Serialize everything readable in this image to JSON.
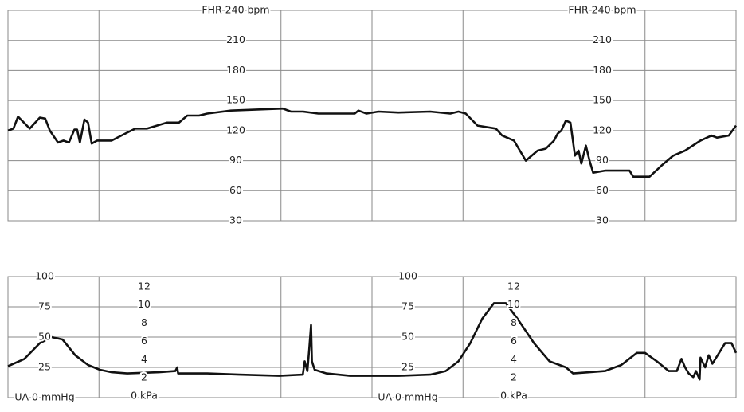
{
  "chart_data": [
    {
      "type": "line",
      "xlim": [
        0,
        80
      ],
      "ylim": [
        30,
        240
      ],
      "yticks": [
        30,
        60,
        90,
        120,
        150,
        180,
        210,
        {
          "value": 240,
          "label": "FHR 240 bpm"
        }
      ],
      "color": "#111111",
      "x": [
        0,
        0.6,
        1.1,
        2.4,
        3.5,
        4.1,
        4.6,
        5.5,
        6.1,
        6.7,
        7.3,
        7.6,
        7.9,
        8.4,
        8.8,
        9.2,
        9.8,
        11.4,
        13.1,
        14.0,
        15.3,
        17.5,
        18.8,
        19.7,
        21.0,
        21.9,
        24.5,
        30.2,
        31.1,
        32.4,
        34.1,
        38.1,
        38.5,
        39.4,
        40.7,
        42.9,
        46.4,
        48.6,
        49.5,
        50.3,
        51.6,
        53.6,
        54.3,
        55.6,
        56.9,
        58.2,
        59.1,
        60.0,
        60.4,
        60.8,
        61.3,
        61.8,
        62.3,
        62.7,
        63.0,
        63.5,
        63.9,
        64.3,
        65.6,
        68.3,
        68.7,
        70.5,
        71.8,
        73.1,
        74.4,
        76.1,
        77.3,
        77.9,
        79.2,
        80
      ],
      "values": [
        120,
        122,
        134,
        122,
        133,
        132,
        120,
        108,
        110,
        108,
        121,
        121,
        108,
        131,
        128,
        107,
        110,
        110,
        118,
        122,
        122,
        128,
        128,
        135,
        135,
        137,
        140,
        142,
        139,
        139,
        137,
        137,
        140,
        137,
        139,
        138,
        139,
        137,
        139,
        137,
        125,
        122,
        115,
        110,
        90,
        100,
        102,
        110,
        117,
        120,
        130,
        128,
        95,
        100,
        87,
        105,
        90,
        78,
        80,
        80,
        74,
        74,
        85,
        95,
        100,
        110,
        115,
        113,
        115,
        125
      ]
    },
    {
      "type": "line",
      "xlim": [
        0,
        80
      ],
      "ylim": [
        0,
        100
      ],
      "yticks": [
        {
          "value": 0,
          "label": "UA  0  mmHg"
        },
        25,
        50,
        75,
        100
      ],
      "y2lim": [
        0,
        13.3
      ],
      "y2ticks": [
        {
          "value": 0,
          "label": "0 kPa"
        },
        2,
        4,
        6,
        8,
        10,
        12
      ],
      "color": "#111111",
      "x": [
        0,
        1.8,
        3.5,
        4.8,
        6.0,
        7.4,
        8.8,
        10.1,
        11.4,
        13.1,
        16.6,
        18.4,
        18.6,
        18.7,
        21.9,
        25.4,
        29.8,
        32.4,
        32.6,
        32.9,
        33.1,
        33.3,
        33.4,
        33.7,
        35.0,
        37.6,
        42.9,
        46.4,
        48.1,
        49.5,
        50.8,
        52.1,
        53.4,
        54.7,
        56.0,
        57.8,
        59.5,
        61.3,
        62.1,
        63.9,
        65.6,
        67.4,
        69.1,
        70.0,
        71.3,
        72.6,
        73.5,
        74.0,
        74.4,
        74.8,
        75.3,
        75.6,
        76.0,
        76.1,
        76.6,
        77.0,
        77.4,
        77.9,
        78.8,
        79.5,
        80
      ],
      "values": [
        26,
        32,
        45,
        50,
        48,
        35,
        27,
        23,
        21,
        20,
        21,
        22,
        25,
        20,
        20,
        19,
        18,
        19,
        30,
        22,
        40,
        60,
        30,
        23,
        20,
        18,
        18,
        19,
        22,
        30,
        45,
        65,
        78,
        78,
        65,
        45,
        30,
        25,
        20,
        21,
        22,
        27,
        37,
        37,
        30,
        22,
        22,
        32,
        25,
        20,
        17,
        22,
        15,
        33,
        25,
        35,
        28,
        34,
        45,
        45,
        37
      ]
    }
  ]
}
